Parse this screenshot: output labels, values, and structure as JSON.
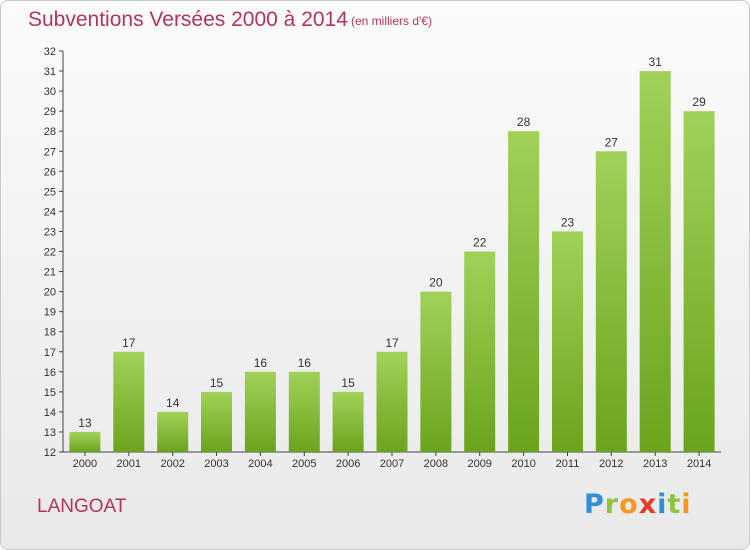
{
  "title": "Subventions Versées 2000 à 2014",
  "subtitle": "(en milliers d'€)",
  "commune": "LANGOAT",
  "logo": "Proxiti",
  "colors": {
    "bar_top": "#a1d159",
    "bar_bottom": "#6aa41c",
    "text": "#b4345c"
  },
  "chart_data": {
    "type": "bar",
    "categories": [
      "2000",
      "2001",
      "2002",
      "2003",
      "2004",
      "2005",
      "2006",
      "2007",
      "2008",
      "2009",
      "2010",
      "2011",
      "2012",
      "2013",
      "2014"
    ],
    "values": [
      13,
      17,
      14,
      15,
      16,
      16,
      15,
      17,
      20,
      22,
      28,
      23,
      27,
      31,
      29
    ],
    "ylim": [
      12,
      32
    ],
    "yticks": [
      12,
      13,
      14,
      15,
      16,
      17,
      18,
      19,
      20,
      21,
      22,
      23,
      24,
      25,
      26,
      27,
      28,
      29,
      30,
      31,
      32
    ],
    "grid": false,
    "data_labels": true
  }
}
